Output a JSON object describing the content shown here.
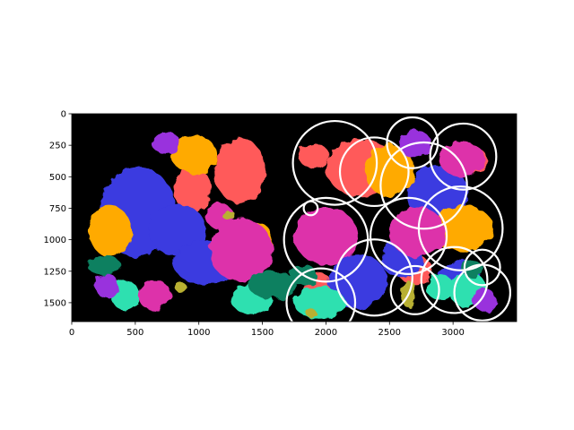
{
  "chart_data": {
    "type": "heatmap",
    "title": "",
    "xlabel": "",
    "ylabel": "",
    "image_width": 3500,
    "image_height": 1650,
    "xlim": [
      0,
      3500
    ],
    "ylim": [
      1650,
      0
    ],
    "grid": false,
    "x_ticks": [
      0,
      500,
      1000,
      1500,
      2000,
      2500,
      3000
    ],
    "y_ticks": [
      0,
      250,
      500,
      750,
      1000,
      1250,
      1500
    ],
    "background_color": "#000000",
    "palette": [
      "#ff5a5a",
      "#3a3ae0",
      "#ffaa00",
      "#dd33aa",
      "#2ee0b0",
      "#0a8060",
      "#9933dd",
      "#b8b030"
    ],
    "color_regions": [
      {
        "color": "#ff5a5a",
        "x": 1320,
        "y": 450,
        "rx": 200,
        "ry": 260
      },
      {
        "color": "#ff5a5a",
        "x": 2280,
        "y": 430,
        "rx": 280,
        "ry": 230
      },
      {
        "color": "#ff5a5a",
        "x": 950,
        "y": 600,
        "rx": 150,
        "ry": 170
      },
      {
        "color": "#ff5a5a",
        "x": 1900,
        "y": 330,
        "rx": 120,
        "ry": 100
      },
      {
        "color": "#ff5a5a",
        "x": 2700,
        "y": 1240,
        "rx": 140,
        "ry": 110
      },
      {
        "color": "#ff5a5a",
        "x": 3150,
        "y": 370,
        "rx": 120,
        "ry": 110
      },
      {
        "color": "#ff5a5a",
        "x": 850,
        "y": 1010,
        "rx": 120,
        "ry": 110
      },
      {
        "color": "#ff5a5a",
        "x": 1950,
        "y": 1390,
        "rx": 120,
        "ry": 120
      },
      {
        "color": "#3a3ae0",
        "x": 520,
        "y": 780,
        "rx": 300,
        "ry": 360
      },
      {
        "color": "#3a3ae0",
        "x": 830,
        "y": 920,
        "rx": 230,
        "ry": 200
      },
      {
        "color": "#3a3ae0",
        "x": 1050,
        "y": 1180,
        "rx": 250,
        "ry": 180
      },
      {
        "color": "#3a3ae0",
        "x": 2250,
        "y": 1330,
        "rx": 230,
        "ry": 220
      },
      {
        "color": "#3a3ae0",
        "x": 2880,
        "y": 640,
        "rx": 240,
        "ry": 230
      },
      {
        "color": "#3a3ae0",
        "x": 2600,
        "y": 1150,
        "rx": 170,
        "ry": 150
      },
      {
        "color": "#3a3ae0",
        "x": 3050,
        "y": 1310,
        "rx": 170,
        "ry": 150
      },
      {
        "color": "#ffaa00",
        "x": 300,
        "y": 930,
        "rx": 170,
        "ry": 200
      },
      {
        "color": "#ffaa00",
        "x": 2500,
        "y": 450,
        "rx": 190,
        "ry": 210
      },
      {
        "color": "#ffaa00",
        "x": 3070,
        "y": 910,
        "rx": 250,
        "ry": 180
      },
      {
        "color": "#ffaa00",
        "x": 960,
        "y": 320,
        "rx": 180,
        "ry": 150
      },
      {
        "color": "#ffaa00",
        "x": 1450,
        "y": 1000,
        "rx": 130,
        "ry": 140
      },
      {
        "color": "#ffaa00",
        "x": 1980,
        "y": 1080,
        "rx": 100,
        "ry": 90
      },
      {
        "color": "#dd33aa",
        "x": 1330,
        "y": 1080,
        "rx": 250,
        "ry": 250
      },
      {
        "color": "#dd33aa",
        "x": 2000,
        "y": 970,
        "rx": 250,
        "ry": 230
      },
      {
        "color": "#dd33aa",
        "x": 2720,
        "y": 940,
        "rx": 220,
        "ry": 200
      },
      {
        "color": "#dd33aa",
        "x": 3070,
        "y": 360,
        "rx": 180,
        "ry": 140
      },
      {
        "color": "#dd33aa",
        "x": 650,
        "y": 1440,
        "rx": 130,
        "ry": 120
      },
      {
        "color": "#dd33aa",
        "x": 1160,
        "y": 810,
        "rx": 110,
        "ry": 100
      },
      {
        "color": "#2ee0b0",
        "x": 1420,
        "y": 1470,
        "rx": 170,
        "ry": 120
      },
      {
        "color": "#2ee0b0",
        "x": 1950,
        "y": 1500,
        "rx": 200,
        "ry": 130
      },
      {
        "color": "#2ee0b0",
        "x": 3120,
        "y": 1400,
        "rx": 150,
        "ry": 140
      },
      {
        "color": "#2ee0b0",
        "x": 420,
        "y": 1440,
        "rx": 110,
        "ry": 120
      },
      {
        "color": "#2ee0b0",
        "x": 2900,
        "y": 1380,
        "rx": 110,
        "ry": 100
      },
      {
        "color": "#0a8060",
        "x": 1580,
        "y": 1360,
        "rx": 190,
        "ry": 110
      },
      {
        "color": "#0a8060",
        "x": 250,
        "y": 1200,
        "rx": 130,
        "ry": 80
      },
      {
        "color": "#0a8060",
        "x": 3150,
        "y": 1230,
        "rx": 80,
        "ry": 70
      },
      {
        "color": "#0a8060",
        "x": 1820,
        "y": 1280,
        "rx": 110,
        "ry": 80
      },
      {
        "color": "#9933dd",
        "x": 740,
        "y": 230,
        "rx": 110,
        "ry": 90
      },
      {
        "color": "#9933dd",
        "x": 2700,
        "y": 240,
        "rx": 130,
        "ry": 110
      },
      {
        "color": "#9933dd",
        "x": 280,
        "y": 1370,
        "rx": 90,
        "ry": 100
      },
      {
        "color": "#9933dd",
        "x": 3250,
        "y": 1480,
        "rx": 90,
        "ry": 90
      },
      {
        "color": "#b8b030",
        "x": 2650,
        "y": 1430,
        "rx": 60,
        "ry": 110
      },
      {
        "color": "#b8b030",
        "x": 1230,
        "y": 800,
        "rx": 50,
        "ry": 40
      },
      {
        "color": "#b8b030",
        "x": 860,
        "y": 1380,
        "rx": 45,
        "ry": 40
      },
      {
        "color": "#b8b030",
        "x": 1880,
        "y": 1580,
        "rx": 40,
        "ry": 35
      }
    ],
    "circles": [
      {
        "cx": 2070,
        "cy": 390,
        "r": 330
      },
      {
        "cx": 2680,
        "cy": 230,
        "r": 200
      },
      {
        "cx": 3080,
        "cy": 340,
        "r": 260
      },
      {
        "cx": 2380,
        "cy": 460,
        "r": 270
      },
      {
        "cx": 2770,
        "cy": 570,
        "r": 340
      },
      {
        "cx": 3060,
        "cy": 910,
        "r": 330
      },
      {
        "cx": 2000,
        "cy": 1000,
        "r": 330
      },
      {
        "cx": 2650,
        "cy": 970,
        "r": 300
      },
      {
        "cx": 1880,
        "cy": 750,
        "r": 55
      },
      {
        "cx": 2380,
        "cy": 1300,
        "r": 300
      },
      {
        "cx": 3010,
        "cy": 1320,
        "r": 260
      },
      {
        "cx": 3230,
        "cy": 1220,
        "r": 140
      },
      {
        "cx": 2700,
        "cy": 1400,
        "r": 190
      },
      {
        "cx": 3230,
        "cy": 1420,
        "r": 220
      },
      {
        "cx": 1960,
        "cy": 1500,
        "r": 270
      }
    ],
    "circle_color": "#ffffff"
  }
}
